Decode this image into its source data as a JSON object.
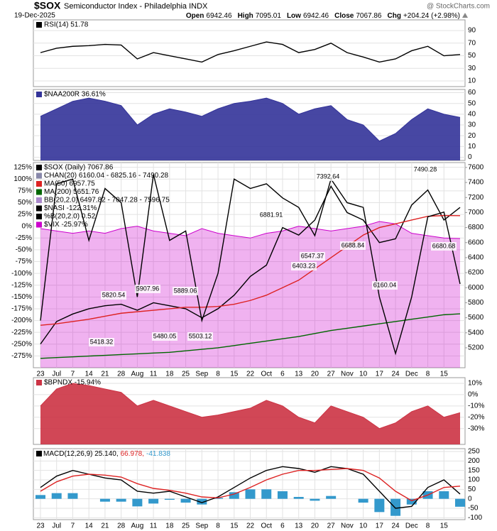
{
  "header": {
    "symbol": "$SOX",
    "name": "Semiconductor Index - Philadelphia INDX",
    "date": "19-Dec-2025",
    "watermark": "@ StockCharts.com",
    "quote": [
      {
        "label": "Open",
        "value": 6942.46
      },
      {
        "label": "High",
        "value": 7095.01
      },
      {
        "label": "Low",
        "value": 6942.46
      },
      {
        "label": "Close",
        "value": 7067.86
      },
      {
        "label": "Chg",
        "value": "+204.24 (+2.98%)"
      }
    ]
  },
  "chart_data": [
    {
      "type": "line",
      "axis_side": "right",
      "ylim": [
        1,
        107
      ],
      "yticks": [
        90,
        70,
        50,
        30,
        10
      ],
      "grid": true,
      "series": [
        {
          "name": "RSI(14) 51.78",
          "color": "#000000",
          "values": [
            55,
            62,
            65,
            66,
            68,
            67,
            45,
            55,
            50,
            45,
            40,
            52,
            58,
            65,
            72,
            68,
            55,
            60,
            70,
            55,
            48,
            40,
            45,
            58,
            65,
            50,
            52
          ]
        }
      ]
    },
    {
      "type": "area",
      "axis_side": "right",
      "ylim": [
        -3,
        63
      ],
      "yticks": [
        60,
        50,
        40,
        30,
        20,
        10,
        0
      ],
      "grid": true,
      "series": [
        {
          "name": "$NAA200R 36.61%",
          "color": "#333399",
          "values": [
            38,
            45,
            52,
            55,
            52,
            48,
            30,
            40,
            45,
            42,
            38,
            45,
            50,
            52,
            55,
            50,
            40,
            45,
            48,
            35,
            30,
            15,
            22,
            35,
            45,
            40,
            37
          ]
        }
      ]
    },
    {
      "type": "line",
      "axis_side": "both",
      "grid": true,
      "categories": [
        "23",
        "Jul",
        "7",
        "14",
        "21",
        "28",
        "Aug",
        "11",
        "18",
        "25",
        "Sep",
        "8",
        "15",
        "22",
        "Oct",
        "6",
        "13",
        "20",
        "27",
        "Nov",
        "10",
        "17",
        "24",
        "Dec",
        "8",
        "15",
        null
      ],
      "ylim": [
        -300,
        135
      ],
      "yticks": [
        {
          "value": 125,
          "label": "125%"
        },
        {
          "value": 100,
          "label": "100%"
        },
        {
          "value": 75,
          "label": "75%"
        },
        {
          "value": 50,
          "label": "50%"
        },
        {
          "value": 25,
          "label": "25%"
        },
        {
          "value": 0,
          "label": "0%"
        },
        {
          "value": -25,
          "label": "-25%"
        },
        {
          "value": -50,
          "label": "-50%"
        },
        {
          "value": -75,
          "label": "-75%"
        },
        {
          "value": -100,
          "label": "-100%"
        },
        {
          "value": -125,
          "label": "-125%"
        },
        {
          "value": -150,
          "label": "-150%"
        },
        {
          "value": -175,
          "label": "-175%"
        },
        {
          "value": -200,
          "label": "-200%"
        },
        {
          "value": -225,
          "label": "-225%"
        },
        {
          "value": -250,
          "label": "-250%"
        },
        {
          "value": -275,
          "label": "-275%"
        }
      ],
      "y2lim": [
        4935,
        7665
      ],
      "y2ticks": [
        7600,
        7400,
        7200,
        7000,
        6800,
        6600,
        6400,
        6200,
        6000,
        5800,
        5600,
        5400,
        5200
      ],
      "series": [
        {
          "name": "$SOX (Daily) 7067.86",
          "color": "#000000",
          "axis": "y2",
          "values": [
            5250,
            5550,
            5650,
            5720,
            5760,
            5780,
            5700,
            5800,
            5760,
            5720,
            5600,
            5720,
            5900,
            6150,
            6300,
            6800,
            6700,
            6900,
            7350,
            7000,
            6900,
            6600,
            6650,
            7100,
            7300,
            6900,
            7067.86
          ]
        },
        {
          "name": "MA(50) 6957.75",
          "color": "#dd2222",
          "axis": "y2",
          "values": [
            5500,
            5520,
            5550,
            5580,
            5620,
            5660,
            5680,
            5700,
            5720,
            5740,
            5740,
            5750,
            5780,
            5830,
            5900,
            6000,
            6100,
            6250,
            6400,
            6550,
            6700,
            6800,
            6850,
            6900,
            6950,
            6960,
            6958
          ]
        },
        {
          "name": "MA(200) 5651.76",
          "color": "#006600",
          "axis": "y2",
          "values": [
            5060,
            5070,
            5080,
            5090,
            5100,
            5110,
            5120,
            5130,
            5140,
            5160,
            5180,
            5200,
            5230,
            5260,
            5290,
            5320,
            5350,
            5390,
            5430,
            5460,
            5490,
            5520,
            5550,
            5580,
            5610,
            5640,
            5652
          ]
        },
        {
          "name": "$NASI -122.31%",
          "color": "#000000",
          "values": [
            -200,
            90,
            100,
            -30,
            80,
            50,
            -150,
            110,
            -30,
            -10,
            -200,
            -100,
            100,
            80,
            90,
            60,
            40,
            -20,
            100,
            50,
            40,
            -150,
            -270,
            -150,
            20,
            30,
            -122.31
          ]
        },
        {
          "name": "$VIX -25.97%",
          "color": "#cc00cc",
          "type": "area",
          "values": [
            -5,
            -10,
            -15,
            -10,
            -15,
            -5,
            0,
            -10,
            -15,
            -20,
            -5,
            -15,
            -20,
            -25,
            -15,
            -10,
            0,
            -5,
            -10,
            -5,
            0,
            10,
            5,
            -15,
            -20,
            -25,
            -25.97
          ]
        }
      ],
      "indicators": [
        "CHAN(20) 6160.04 - 6825.16 - 7490.28",
        "BB(20,2.0) 6497.82 - 7047.28 - 7596.75",
        "%B(20,2.0) 0.52"
      ],
      "price_labels": [
        5820.54,
        5907.96,
        5889.06,
        5418.32,
        5480.05,
        5503.12,
        6881.91,
        7392.64,
        7490.28,
        6403.23,
        6547.37,
        6688.84,
        6160.04,
        6680.68
      ]
    },
    {
      "type": "area",
      "axis_side": "right",
      "ylim": [
        -44,
        15
      ],
      "grid": true,
      "yticks": [
        {
          "value": 10,
          "label": "10%"
        },
        {
          "value": 0,
          "label": "0%"
        },
        {
          "value": -10,
          "label": "-10%"
        },
        {
          "value": -20,
          "label": "-20%"
        },
        {
          "value": -30,
          "label": "-30%"
        }
      ],
      "series": [
        {
          "name": "$BPNDX -15.94%",
          "color": "#cc3344",
          "values": [
            -10,
            5,
            10,
            8,
            5,
            2,
            -10,
            -5,
            -10,
            -15,
            -20,
            -18,
            -15,
            -12,
            -5,
            -10,
            -20,
            -25,
            -10,
            -15,
            -20,
            -30,
            -25,
            -15,
            -10,
            -20,
            -15.94
          ]
        }
      ]
    },
    {
      "type": "line",
      "axis_side": "right",
      "ylim": [
        -110,
        265
      ],
      "yticks": [
        250,
        200,
        150,
        100,
        50,
        0,
        -50,
        -100
      ],
      "grid": true,
      "categories": [
        "23",
        "Jul",
        "7",
        "14",
        "21",
        "28",
        "Aug",
        "11",
        "18",
        "25",
        "Sep",
        "8",
        "15",
        "22",
        "Oct",
        "6",
        "13",
        "20",
        "27",
        "Nov",
        "10",
        "17",
        "24",
        "Dec",
        "8",
        "15",
        null
      ],
      "series": [
        {
          "name": "MACD(12,26,9) 25.140,",
          "color": "#000000",
          "values": [
            60,
            120,
            150,
            130,
            110,
            100,
            40,
            30,
            40,
            10,
            -20,
            10,
            60,
            110,
            150,
            170,
            160,
            140,
            170,
            160,
            130,
            40,
            -50,
            -40,
            60,
            100,
            25.14
          ]
        },
        {
          "name": "66.978,",
          "color": "#dd2222",
          "values": [
            40,
            90,
            120,
            130,
            125,
            115,
            80,
            55,
            45,
            30,
            10,
            5,
            25,
            60,
            100,
            130,
            150,
            150,
            155,
            160,
            150,
            110,
            40,
            -10,
            20,
            60,
            66.978
          ]
        },
        {
          "name": "-41.838",
          "color": "#3399cc",
          "type": "bar",
          "values": [
            20,
            30,
            30,
            0,
            -15,
            -15,
            -40,
            -25,
            -5,
            -20,
            -30,
            5,
            35,
            50,
            50,
            40,
            10,
            -10,
            15,
            0,
            -20,
            -70,
            -90,
            -30,
            40,
            40,
            -41.838
          ]
        }
      ]
    }
  ]
}
